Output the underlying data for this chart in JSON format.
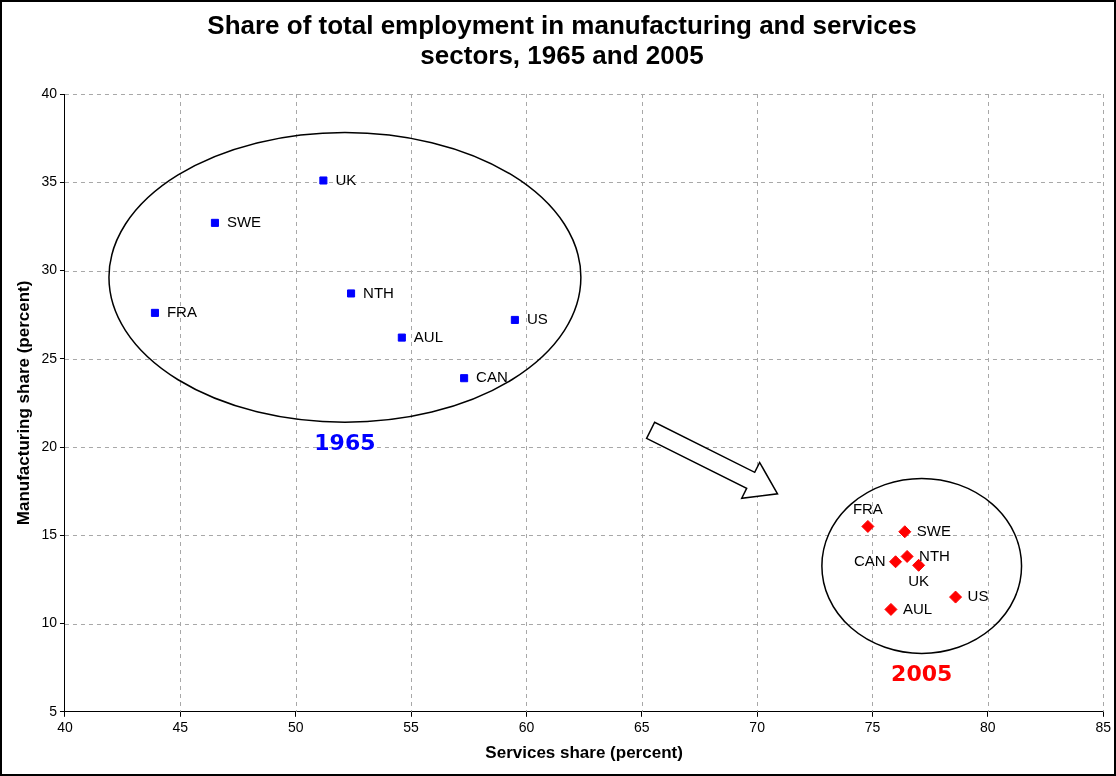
{
  "chart_data": {
    "type": "scatter",
    "title": "Share of total employment in manufacturing and services sectors, 1965 and 2005",
    "xlabel": "Services share (percent)",
    "ylabel": "Manufacturing share (percent)",
    "xlim": [
      40,
      85
    ],
    "xticks": [
      40,
      45,
      50,
      55,
      60,
      65,
      70,
      75,
      80,
      85
    ],
    "ylim": [
      5,
      40
    ],
    "yticks": [
      5,
      10,
      15,
      20,
      25,
      30,
      35,
      40
    ],
    "grid": true,
    "legend": false,
    "series": [
      {
        "name": "1965",
        "color": "#0000ff",
        "marker": "square",
        "x": [
          51.2,
          46.5,
          43.9,
          52.4,
          54.6,
          59.5,
          57.3
        ],
        "values": [
          35.1,
          32.7,
          27.6,
          28.7,
          26.2,
          27.2,
          23.9
        ]
      },
      {
        "name": "2005",
        "color": "#ff0000",
        "marker": "diamond",
        "x": [
          74.8,
          76.4,
          76.0,
          76.5,
          77.0,
          78.6,
          75.8
        ],
        "values": [
          15.5,
          15.2,
          13.5,
          13.8,
          13.3,
          11.5,
          10.8
        ]
      }
    ],
    "annotations": [
      {
        "text": "UK",
        "x": 51.2,
        "y": 35.1
      },
      {
        "text": "SWE",
        "x": 46.5,
        "y": 32.7
      },
      {
        "text": "FRA",
        "x": 43.9,
        "y": 27.6
      },
      {
        "text": "NTH",
        "x": 52.4,
        "y": 28.7
      },
      {
        "text": "AUL",
        "x": 54.6,
        "y": 26.2
      },
      {
        "text": "US",
        "x": 59.5,
        "y": 27.2
      },
      {
        "text": "CAN",
        "x": 57.3,
        "y": 23.9
      },
      {
        "text": "FRA",
        "x": 74.8,
        "y": 15.5
      },
      {
        "text": "SWE",
        "x": 76.4,
        "y": 15.2
      },
      {
        "text": "CAN",
        "x": 76.0,
        "y": 13.5
      },
      {
        "text": "NTH",
        "x": 76.5,
        "y": 13.8
      },
      {
        "text": "UK",
        "x": 77.0,
        "y": 13.3
      },
      {
        "text": "US",
        "x": 78.6,
        "y": 11.5
      },
      {
        "text": "AUL",
        "x": 75.8,
        "y": 10.8
      }
    ]
  }
}
